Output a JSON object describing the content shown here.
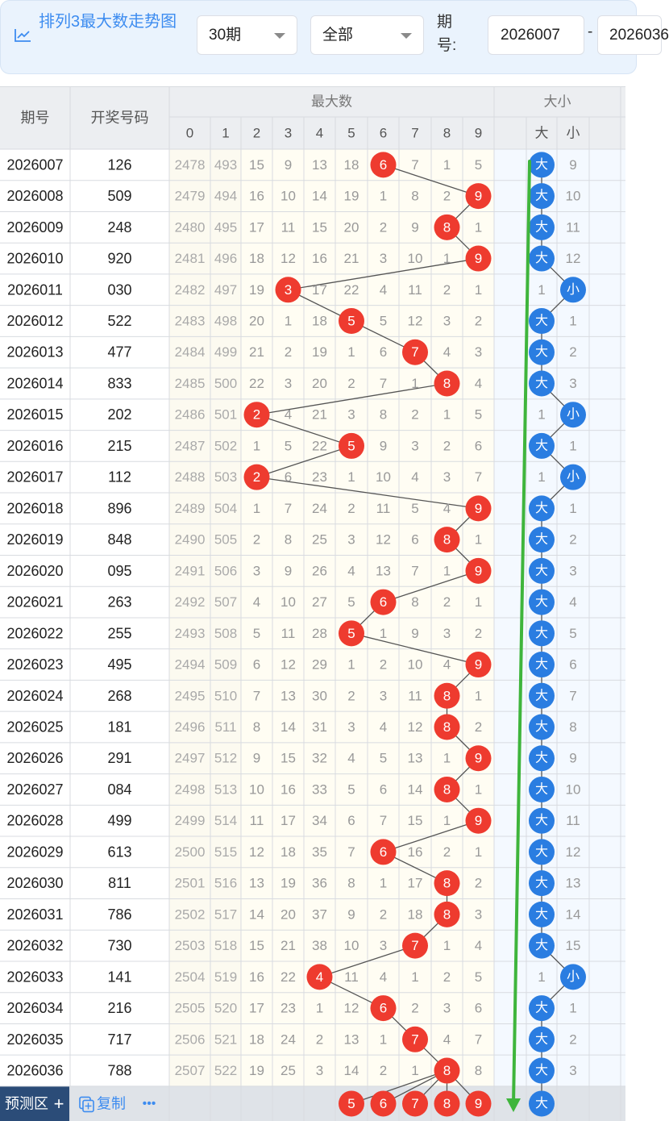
{
  "header": {
    "title": "排列3最大数走势图",
    "period_select": "30期",
    "type_select": "全部",
    "issue_label": "期号:",
    "issue_from": "2026007",
    "issue_dash": "-",
    "issue_to": "2026036"
  },
  "table": {
    "col_issue": "期号",
    "col_draw": "开奖号码",
    "group_max": "最大数",
    "group_size": "大小",
    "max_digits": [
      "0",
      "1",
      "2",
      "3",
      "4",
      "5",
      "6",
      "7",
      "8",
      "9"
    ],
    "size_labels": [
      "大",
      "小"
    ],
    "rows": [
      {
        "issue": "2026007",
        "draw": "126",
        "max": 6,
        "size": "大",
        "m": [
          2478,
          493,
          15,
          9,
          13,
          18,
          null,
          7,
          1,
          5
        ],
        "s": [
          null,
          9
        ]
      },
      {
        "issue": "2026008",
        "draw": "509",
        "max": 9,
        "size": "大",
        "m": [
          2479,
          494,
          16,
          10,
          14,
          19,
          1,
          8,
          2,
          null
        ],
        "s": [
          null,
          10
        ]
      },
      {
        "issue": "2026009",
        "draw": "248",
        "max": 8,
        "size": "大",
        "m": [
          2480,
          495,
          17,
          11,
          15,
          20,
          2,
          9,
          null,
          1
        ],
        "s": [
          null,
          11
        ]
      },
      {
        "issue": "2026010",
        "draw": "920",
        "max": 9,
        "size": "大",
        "m": [
          2481,
          496,
          18,
          12,
          16,
          21,
          3,
          10,
          1,
          null
        ],
        "s": [
          null,
          12
        ]
      },
      {
        "issue": "2026011",
        "draw": "030",
        "max": 3,
        "size": "小",
        "m": [
          2482,
          497,
          19,
          null,
          17,
          22,
          4,
          11,
          2,
          1
        ],
        "s": [
          1,
          null
        ]
      },
      {
        "issue": "2026012",
        "draw": "522",
        "max": 5,
        "size": "大",
        "m": [
          2483,
          498,
          20,
          1,
          18,
          null,
          5,
          12,
          3,
          2
        ],
        "s": [
          null,
          1
        ]
      },
      {
        "issue": "2026013",
        "draw": "477",
        "max": 7,
        "size": "大",
        "m": [
          2484,
          499,
          21,
          2,
          19,
          1,
          6,
          null,
          4,
          3
        ],
        "s": [
          null,
          2
        ]
      },
      {
        "issue": "2026014",
        "draw": "833",
        "max": 8,
        "size": "大",
        "m": [
          2485,
          500,
          22,
          3,
          20,
          2,
          7,
          1,
          null,
          4
        ],
        "s": [
          null,
          3
        ]
      },
      {
        "issue": "2026015",
        "draw": "202",
        "max": 2,
        "size": "小",
        "m": [
          2486,
          501,
          null,
          4,
          21,
          3,
          8,
          2,
          1,
          5
        ],
        "s": [
          1,
          null
        ]
      },
      {
        "issue": "2026016",
        "draw": "215",
        "max": 5,
        "size": "大",
        "m": [
          2487,
          502,
          1,
          5,
          22,
          null,
          9,
          3,
          2,
          6
        ],
        "s": [
          null,
          1
        ]
      },
      {
        "issue": "2026017",
        "draw": "112",
        "max": 2,
        "size": "小",
        "m": [
          2488,
          503,
          null,
          6,
          23,
          1,
          10,
          4,
          3,
          7
        ],
        "s": [
          1,
          null
        ]
      },
      {
        "issue": "2026018",
        "draw": "896",
        "max": 9,
        "size": "大",
        "m": [
          2489,
          504,
          1,
          7,
          24,
          2,
          11,
          5,
          4,
          null
        ],
        "s": [
          null,
          1
        ]
      },
      {
        "issue": "2026019",
        "draw": "848",
        "max": 8,
        "size": "大",
        "m": [
          2490,
          505,
          2,
          8,
          25,
          3,
          12,
          6,
          null,
          1
        ],
        "s": [
          null,
          2
        ]
      },
      {
        "issue": "2026020",
        "draw": "095",
        "max": 9,
        "size": "大",
        "m": [
          2491,
          506,
          3,
          9,
          26,
          4,
          13,
          7,
          1,
          null
        ],
        "s": [
          null,
          3
        ]
      },
      {
        "issue": "2026021",
        "draw": "263",
        "max": 6,
        "size": "大",
        "m": [
          2492,
          507,
          4,
          10,
          27,
          5,
          null,
          8,
          2,
          1
        ],
        "s": [
          null,
          4
        ]
      },
      {
        "issue": "2026022",
        "draw": "255",
        "max": 5,
        "size": "大",
        "m": [
          2493,
          508,
          5,
          11,
          28,
          null,
          1,
          9,
          3,
          2
        ],
        "s": [
          null,
          5
        ]
      },
      {
        "issue": "2026023",
        "draw": "495",
        "max": 9,
        "size": "大",
        "m": [
          2494,
          509,
          6,
          12,
          29,
          1,
          2,
          10,
          4,
          null
        ],
        "s": [
          null,
          6
        ]
      },
      {
        "issue": "2026024",
        "draw": "268",
        "max": 8,
        "size": "大",
        "m": [
          2495,
          510,
          7,
          13,
          30,
          2,
          3,
          11,
          null,
          1
        ],
        "s": [
          null,
          7
        ]
      },
      {
        "issue": "2026025",
        "draw": "181",
        "max": 8,
        "size": "大",
        "m": [
          2496,
          511,
          8,
          14,
          31,
          3,
          4,
          12,
          null,
          2
        ],
        "s": [
          null,
          8
        ]
      },
      {
        "issue": "2026026",
        "draw": "291",
        "max": 9,
        "size": "大",
        "m": [
          2497,
          512,
          9,
          15,
          32,
          4,
          5,
          13,
          1,
          null
        ],
        "s": [
          null,
          9
        ]
      },
      {
        "issue": "2026027",
        "draw": "084",
        "max": 8,
        "size": "大",
        "m": [
          2498,
          513,
          10,
          16,
          33,
          5,
          6,
          14,
          null,
          1
        ],
        "s": [
          null,
          10
        ]
      },
      {
        "issue": "2026028",
        "draw": "499",
        "max": 9,
        "size": "大",
        "m": [
          2499,
          514,
          11,
          17,
          34,
          6,
          7,
          15,
          1,
          null
        ],
        "s": [
          null,
          11
        ]
      },
      {
        "issue": "2026029",
        "draw": "613",
        "max": 6,
        "size": "大",
        "m": [
          2500,
          515,
          12,
          18,
          35,
          7,
          null,
          16,
          2,
          1
        ],
        "s": [
          null,
          12
        ]
      },
      {
        "issue": "2026030",
        "draw": "811",
        "max": 8,
        "size": "大",
        "m": [
          2501,
          516,
          13,
          19,
          36,
          8,
          1,
          17,
          null,
          2
        ],
        "s": [
          null,
          13
        ]
      },
      {
        "issue": "2026031",
        "draw": "786",
        "max": 8,
        "size": "大",
        "m": [
          2502,
          517,
          14,
          20,
          37,
          9,
          2,
          18,
          null,
          3
        ],
        "s": [
          null,
          14
        ]
      },
      {
        "issue": "2026032",
        "draw": "730",
        "max": 7,
        "size": "大",
        "m": [
          2503,
          518,
          15,
          21,
          38,
          10,
          3,
          null,
          1,
          4
        ],
        "s": [
          null,
          15
        ]
      },
      {
        "issue": "2026033",
        "draw": "141",
        "max": 4,
        "size": "小",
        "m": [
          2504,
          519,
          16,
          22,
          null,
          11,
          4,
          1,
          2,
          5
        ],
        "s": [
          1,
          null
        ]
      },
      {
        "issue": "2026034",
        "draw": "216",
        "max": 6,
        "size": "大",
        "m": [
          2505,
          520,
          17,
          23,
          1,
          12,
          null,
          2,
          3,
          6
        ],
        "s": [
          null,
          1
        ]
      },
      {
        "issue": "2026035",
        "draw": "717",
        "max": 7,
        "size": "大",
        "m": [
          2506,
          521,
          18,
          24,
          2,
          13,
          1,
          null,
          4,
          7
        ],
        "s": [
          null,
          2
        ]
      },
      {
        "issue": "2026036",
        "draw": "788",
        "max": 8,
        "size": "大",
        "m": [
          2507,
          522,
          19,
          25,
          3,
          14,
          2,
          1,
          null,
          8
        ],
        "s": [
          null,
          3
        ]
      }
    ]
  },
  "predict": {
    "label": "预测区",
    "plus": "+",
    "copy_label": "复制",
    "more": "•••",
    "balls": [
      "5",
      "6",
      "7",
      "8",
      "9"
    ],
    "size_ball": "大"
  },
  "colors": {
    "accent_blue": "#3d8cf0",
    "ball_red": "#ee3b2f",
    "ball_blue": "#2a7de1",
    "green_arrow": "#3fb53c",
    "column_yellow": "#fffdf3"
  }
}
